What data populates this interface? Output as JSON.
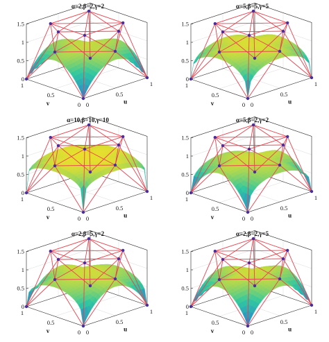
{
  "chart_data": {
    "type": "surface",
    "description_axes": {
      "x_name": "u",
      "y_name": "v",
      "x_ticks": [
        "0",
        "0.5",
        "1"
      ],
      "y_ticks": [
        "0",
        "0.5",
        "1"
      ],
      "z_ticks": [
        "0",
        "0.5",
        "1",
        "1.5"
      ],
      "xlim": [
        0,
        1
      ],
      "ylim": [
        0,
        1
      ],
      "zlim": [
        0,
        1.5
      ]
    },
    "colors": {
      "control_net": "#e8424f",
      "control_point": "#4b2e9e",
      "surface_low": "#2a7bd6",
      "surface_mid": "#2fc7a0",
      "surface_high": "#ffe21a"
    },
    "control_points": {
      "boundary": [
        [
          0,
          0,
          0
        ],
        [
          1,
          0,
          0
        ],
        [
          1,
          1,
          0
        ],
        [
          0,
          1,
          0
        ]
      ],
      "edge_mid": [
        [
          0.5,
          0,
          1
        ],
        [
          1,
          0.5,
          1
        ],
        [
          0.5,
          1,
          1
        ],
        [
          0,
          0.5,
          1
        ]
      ],
      "top_corners": [
        [
          0.2,
          0.2,
          1.5
        ],
        [
          0.8,
          0.2,
          1.5
        ],
        [
          0.8,
          0.8,
          1.5
        ],
        [
          0.2,
          0.8,
          1.5
        ]
      ]
    },
    "panels": [
      {
        "title": "α=2,β=2,γ=2",
        "alpha": 2,
        "beta": 2,
        "gamma": 2
      },
      {
        "title": "α=5,β=5,γ=5",
        "alpha": 5,
        "beta": 5,
        "gamma": 5
      },
      {
        "title": "α=10,β=10,γ=10",
        "alpha": 10,
        "beta": 10,
        "gamma": 10
      },
      {
        "title": "α=5,β=2,γ=2",
        "alpha": 5,
        "beta": 2,
        "gamma": 2
      },
      {
        "title": "α=2,β=5,γ=2",
        "alpha": 2,
        "beta": 5,
        "gamma": 2
      },
      {
        "title": "α=2,β=2,γ=5",
        "alpha": 2,
        "beta": 2,
        "gamma": 5
      }
    ]
  }
}
